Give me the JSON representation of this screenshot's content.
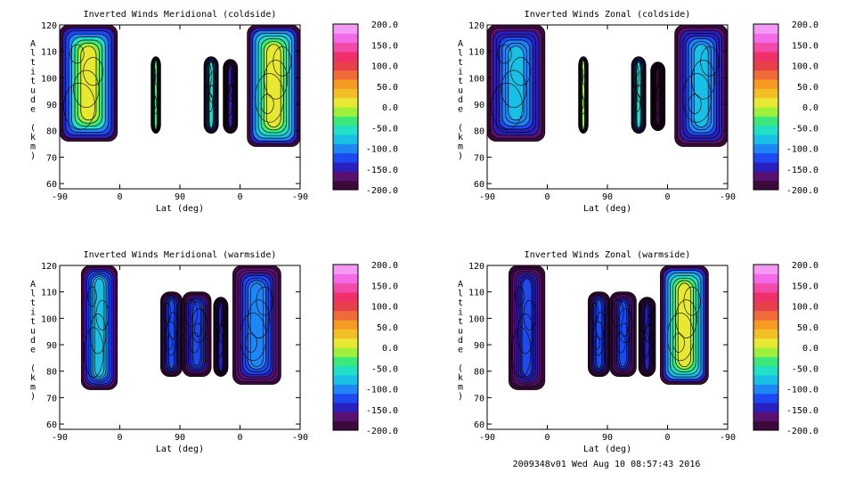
{
  "footer": "2009348v01 Wed Aug 10 08:57:43 2016",
  "colorbar": {
    "levels": [
      "200.0",
      "150.0",
      "100.0",
      "50.0",
      "0.0",
      "-50.0",
      "-100.0",
      "-150.0",
      "-200.0"
    ],
    "value_range": [
      -200,
      200
    ],
    "colors": [
      "#3b0a3b",
      "#5a1070",
      "#2a1fbf",
      "#1c49f0",
      "#1f86f5",
      "#18c0e6",
      "#20e0c8",
      "#3ce87a",
      "#9ef03a",
      "#e8e832",
      "#f2c024",
      "#f59a22",
      "#f06a3a",
      "#e8404a",
      "#f0306a",
      "#f24aa8",
      "#f26ae8",
      "#f49af4"
    ]
  },
  "chart_data": [
    {
      "type": "heatmap",
      "title": "Inverted Winds Meridional (coldside)",
      "xlabel": "Lat (deg)",
      "ylabel": "Altitude (km)",
      "x_tick_labels": [
        "-90",
        "0",
        "90",
        "0",
        "-90"
      ],
      "y_tick_labels": [
        "60",
        "70",
        "80",
        "90",
        "100",
        "110",
        "120"
      ],
      "ylim": [
        58,
        120
      ],
      "blobs": [
        {
          "x": [
            0.0,
            0.24
          ],
          "alt": [
            76,
            120
          ],
          "mean": 10,
          "edge": -200
        },
        {
          "x": [
            0.38,
            0.42
          ],
          "alt": [
            79,
            108
          ],
          "mean": -30,
          "edge": -180
        },
        {
          "x": [
            0.6,
            0.66
          ],
          "alt": [
            79,
            108
          ],
          "mean": -60,
          "edge": -200
        },
        {
          "x": [
            0.68,
            0.74
          ],
          "alt": [
            79,
            107
          ],
          "mean": -150,
          "edge": -200
        },
        {
          "x": [
            0.78,
            1.0
          ],
          "alt": [
            74,
            120
          ],
          "mean": 25,
          "edge": -200
        }
      ]
    },
    {
      "type": "heatmap",
      "title": "Inverted Winds Zonal (coldside)",
      "xlabel": "Lat (deg)",
      "ylabel": "Altitude (km)",
      "x_tick_labels": [
        "-90",
        "0",
        "90",
        "0",
        "-90"
      ],
      "y_tick_labels": [
        "60",
        "70",
        "80",
        "90",
        "100",
        "110",
        "120"
      ],
      "ylim": [
        58,
        120
      ],
      "blobs": [
        {
          "x": [
            0.0,
            0.24
          ],
          "alt": [
            76,
            120
          ],
          "mean": -80,
          "edge": -200
        },
        {
          "x": [
            0.38,
            0.42
          ],
          "alt": [
            79,
            108
          ],
          "mean": -10,
          "edge": -190
        },
        {
          "x": [
            0.6,
            0.66
          ],
          "alt": [
            79,
            108
          ],
          "mean": -60,
          "edge": -200
        },
        {
          "x": [
            0.68,
            0.74
          ],
          "alt": [
            80,
            106
          ],
          "mean": -180,
          "edge": -200
        },
        {
          "x": [
            0.78,
            1.0
          ],
          "alt": [
            74,
            120
          ],
          "mean": -80,
          "edge": -200
        }
      ]
    },
    {
      "type": "heatmap",
      "title": "Inverted Winds Meridional (warmside)",
      "xlabel": "Lat (deg)",
      "ylabel": "Altitude (km)",
      "x_tick_labels": [
        "-90",
        "0",
        "90",
        "0",
        "-90"
      ],
      "y_tick_labels": [
        "60",
        "70",
        "80",
        "90",
        "100",
        "110",
        "120"
      ],
      "ylim": [
        58,
        120
      ],
      "blobs": [
        {
          "x": [
            0.09,
            0.24
          ],
          "alt": [
            73,
            120
          ],
          "mean": -70,
          "edge": -200
        },
        {
          "x": [
            0.42,
            0.51
          ],
          "alt": [
            78,
            110
          ],
          "mean": -110,
          "edge": -200
        },
        {
          "x": [
            0.51,
            0.63
          ],
          "alt": [
            78,
            110
          ],
          "mean": -110,
          "edge": -200
        },
        {
          "x": [
            0.64,
            0.7
          ],
          "alt": [
            78,
            108
          ],
          "mean": -140,
          "edge": -200
        },
        {
          "x": [
            0.72,
            0.92
          ],
          "alt": [
            75,
            120
          ],
          "mean": -90,
          "edge": -200
        }
      ]
    },
    {
      "type": "heatmap",
      "title": "Inverted Winds Zonal (warmside)",
      "xlabel": "Lat (deg)",
      "ylabel": "Altitude (km)",
      "x_tick_labels": [
        "-90",
        "0",
        "90",
        "0",
        "-90"
      ],
      "y_tick_labels": [
        "60",
        "70",
        "80",
        "90",
        "100",
        "110",
        "120"
      ],
      "ylim": [
        58,
        120
      ],
      "blobs": [
        {
          "x": [
            0.09,
            0.24
          ],
          "alt": [
            73,
            120
          ],
          "mean": -130,
          "edge": -200
        },
        {
          "x": [
            0.42,
            0.51
          ],
          "alt": [
            78,
            110
          ],
          "mean": -110,
          "edge": -200
        },
        {
          "x": [
            0.51,
            0.62
          ],
          "alt": [
            78,
            110
          ],
          "mean": -120,
          "edge": -200
        },
        {
          "x": [
            0.63,
            0.7
          ],
          "alt": [
            78,
            108
          ],
          "mean": -140,
          "edge": -200
        },
        {
          "x": [
            0.72,
            0.92
          ],
          "alt": [
            75,
            120
          ],
          "mean": 25,
          "edge": -200
        }
      ]
    }
  ]
}
